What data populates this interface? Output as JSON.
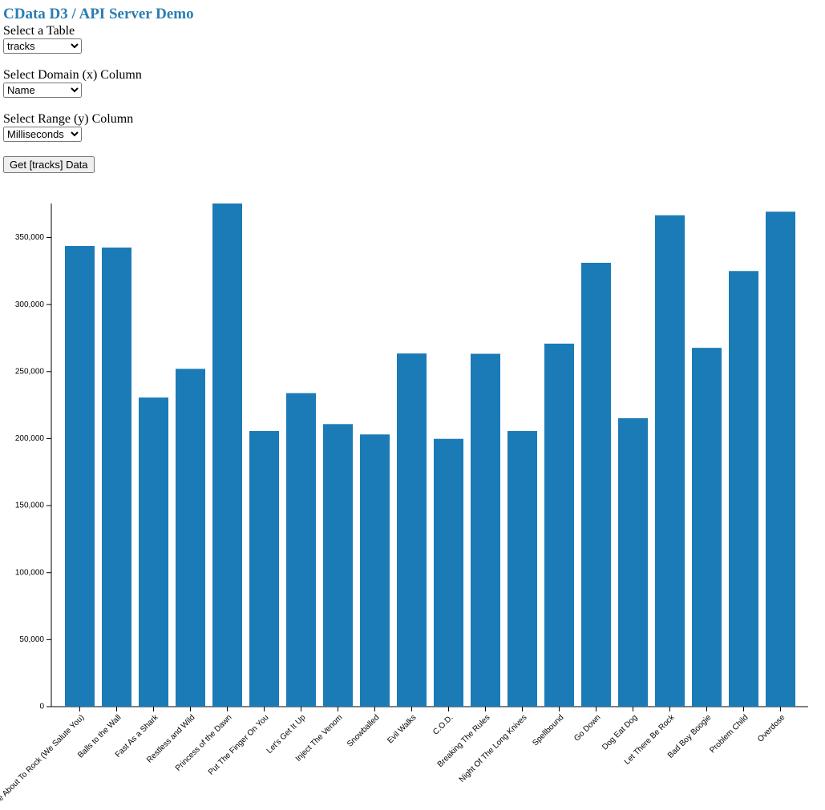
{
  "header": {
    "title": "CData D3 / API Server Demo"
  },
  "controls": [
    {
      "label": "Select a Table",
      "selected": "tracks"
    },
    {
      "label": "Select Domain (x) Column",
      "selected": "Name"
    },
    {
      "label": "Select Range (y) Column",
      "selected": "Milliseconds"
    }
  ],
  "button": "Get [tracks] Data",
  "chart_data": {
    "type": "bar",
    "categories": [
      "For Those About To Rock (We Salute You)",
      "Balls to the Wall",
      "Fast As a Shark",
      "Restless and Wild",
      "Princess of the Dawn",
      "Put The Finger On You",
      "Let's Get It Up",
      "Inject The Venom",
      "Snowballed",
      "Evil Walks",
      "C.O.D.",
      "Breaking The Rules",
      "Night Of The Long Knives",
      "Spellbound",
      "Go Down",
      "Dog Eat Dog",
      "Let There Be Rock",
      "Bad Boy Boogie",
      "Problem Child",
      "Overdose"
    ],
    "values": [
      343719,
      342562,
      230619,
      252051,
      375418,
      205662,
      233926,
      210834,
      203102,
      263497,
      199836,
      263288,
      205688,
      270863,
      331180,
      215196,
      366654,
      267728,
      325041,
      369319
    ],
    "color": "#1b7bb6",
    "ylim": [
      0,
      375418
    ],
    "yticks": [
      0,
      {
        "value": 50000,
        "label": "50,000"
      },
      {
        "value": 100000,
        "label": "100,000"
      },
      {
        "value": 150000,
        "label": "150,000"
      },
      {
        "value": 200000,
        "label": "200,000"
      },
      {
        "value": 250000,
        "label": "250,000"
      },
      {
        "value": 300000,
        "label": "300,000"
      },
      {
        "value": 350000,
        "label": "350,000"
      }
    ]
  }
}
